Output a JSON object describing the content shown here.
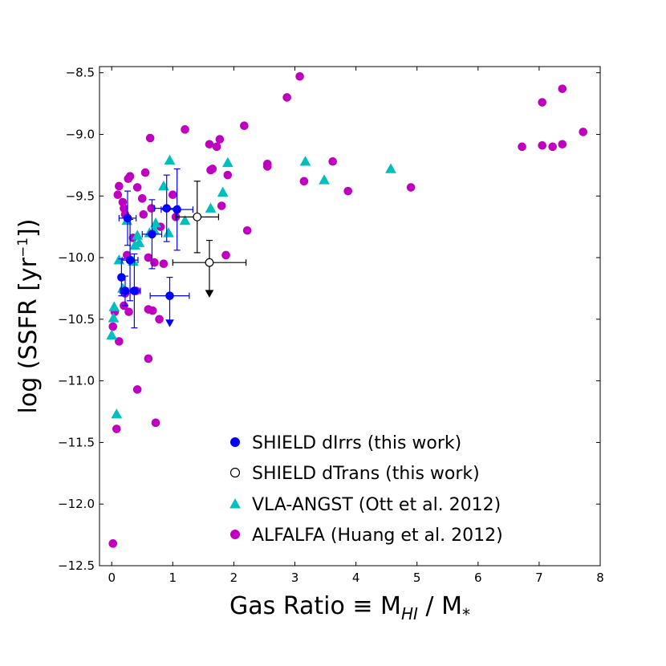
{
  "chart_data": {
    "type": "scatter",
    "xlabel": {
      "prefix": "Gas Ratio ≡ M",
      "sub": "HI",
      "mid": " / M",
      "sub2": "*"
    },
    "ylabel": {
      "prefix": "log (SSFR [yr",
      "sup": "−1",
      "suffix": "])"
    },
    "xlim": [
      -0.2,
      8
    ],
    "ylim": [
      -12.5,
      -8.45
    ],
    "xticks": [
      0,
      1,
      2,
      3,
      4,
      5,
      6,
      7,
      8
    ],
    "xtick_labels": [
      "0",
      "1",
      "2",
      "3",
      "4",
      "5",
      "6",
      "7",
      "8"
    ],
    "yticks": [
      -8.5,
      -9.0,
      -9.5,
      -10.0,
      -10.5,
      -11.0,
      -11.5,
      -12.0,
      -12.5
    ],
    "ytick_labels": [
      "−8.5",
      "−9.0",
      "−9.5",
      "−10.0",
      "−10.5",
      "−11.0",
      "−11.5",
      "−12.0",
      "−12.5"
    ],
    "grid": false,
    "legend_placement": "bottom-right",
    "series": [
      {
        "name": "SHIELD dIrrs (this work)",
        "marker": "circle-filled",
        "color": "#0000ff",
        "points": [
          {
            "x": 0.16,
            "y": -10.16,
            "xerr": 0.04,
            "yerr": 0.15
          },
          {
            "x": 0.22,
            "y": -10.27,
            "xerr": 0.08,
            "yerr": 0.12
          },
          {
            "x": 0.3,
            "y": -10.02,
            "xerr": 0.13,
            "yerr": 0.33
          },
          {
            "x": 0.26,
            "y": -9.68,
            "xerr": 0.14,
            "yerr": 0.22
          },
          {
            "x": 0.37,
            "y": -10.27,
            "xerr": 0.1,
            "yerr": 0.3
          },
          {
            "x": 0.66,
            "y": -9.81,
            "xerr": 0.16,
            "yerr": 0.28
          },
          {
            "x": 0.9,
            "y": -9.6,
            "xerr": 0.2,
            "yerr": 0.27
          },
          {
            "x": 1.07,
            "y": -9.61,
            "xerr": 0.26,
            "yerr": 0.33
          },
          {
            "x": 0.95,
            "y": -10.31,
            "xerr": 0.32,
            "yerr": 0.15,
            "upper_limit": true
          }
        ]
      },
      {
        "name": "SHIELD dTrans (this work)",
        "marker": "circle-open",
        "color": "#000000",
        "points": [
          {
            "x": 1.4,
            "y": -9.67,
            "xerr": 0.35,
            "yerr": 0.29
          },
          {
            "x": 1.6,
            "y": -10.04,
            "xerr": 0.6,
            "yerr": 0.18,
            "upper_limit": true
          }
        ]
      },
      {
        "name": "VLA-ANGST (Ott et al. 2012)",
        "marker": "triangle",
        "color": "#00bfbf",
        "points": [
          {
            "x": 0.0,
            "y": -10.63
          },
          {
            "x": 0.03,
            "y": -10.49
          },
          {
            "x": 0.04,
            "y": -10.4
          },
          {
            "x": 0.08,
            "y": -11.27
          },
          {
            "x": 0.12,
            "y": -10.02
          },
          {
            "x": 0.18,
            "y": -10.25
          },
          {
            "x": 0.25,
            "y": -9.7
          },
          {
            "x": 0.35,
            "y": -10.03
          },
          {
            "x": 0.38,
            "y": -9.9
          },
          {
            "x": 0.42,
            "y": -9.82
          },
          {
            "x": 0.45,
            "y": -9.88
          },
          {
            "x": 0.62,
            "y": -9.8
          },
          {
            "x": 0.7,
            "y": -9.78
          },
          {
            "x": 0.72,
            "y": -9.72
          },
          {
            "x": 0.85,
            "y": -9.42
          },
          {
            "x": 0.95,
            "y": -9.21
          },
          {
            "x": 0.93,
            "y": -9.8
          },
          {
            "x": 1.2,
            "y": -9.7
          },
          {
            "x": 1.62,
            "y": -9.6
          },
          {
            "x": 1.82,
            "y": -9.47
          },
          {
            "x": 1.9,
            "y": -9.23
          },
          {
            "x": 3.17,
            "y": -9.22
          },
          {
            "x": 3.48,
            "y": -9.37
          },
          {
            "x": 4.57,
            "y": -9.28
          }
        ]
      },
      {
        "name": "ALFALFA (Huang et al. 2012)",
        "marker": "circle-filled",
        "color": "#bf00bf",
        "points": [
          {
            "x": 0.02,
            "y": -12.32
          },
          {
            "x": 0.08,
            "y": -11.39
          },
          {
            "x": 0.12,
            "y": -10.68
          },
          {
            "x": 0.02,
            "y": -10.56
          },
          {
            "x": 0.05,
            "y": -10.44
          },
          {
            "x": 0.2,
            "y": -10.39
          },
          {
            "x": 0.28,
            "y": -10.44
          },
          {
            "x": 0.22,
            "y": -10.29
          },
          {
            "x": 0.3,
            "y": -10.02
          },
          {
            "x": 0.25,
            "y": -9.98
          },
          {
            "x": 0.4,
            "y": -10.27
          },
          {
            "x": 0.42,
            "y": -11.07
          },
          {
            "x": 0.1,
            "y": -9.49
          },
          {
            "x": 0.18,
            "y": -9.55
          },
          {
            "x": 0.2,
            "y": -9.6
          },
          {
            "x": 0.22,
            "y": -9.65
          },
          {
            "x": 0.12,
            "y": -9.42
          },
          {
            "x": 0.27,
            "y": -9.36
          },
          {
            "x": 0.3,
            "y": -9.34
          },
          {
            "x": 0.35,
            "y": -9.84
          },
          {
            "x": 0.42,
            "y": -9.43
          },
          {
            "x": 0.5,
            "y": -9.52
          },
          {
            "x": 0.52,
            "y": -9.65
          },
          {
            "x": 0.55,
            "y": -9.31
          },
          {
            "x": 0.6,
            "y": -10.0
          },
          {
            "x": 0.63,
            "y": -9.03
          },
          {
            "x": 0.65,
            "y": -9.6
          },
          {
            "x": 0.7,
            "y": -10.04
          },
          {
            "x": 0.72,
            "y": -11.34
          },
          {
            "x": 0.6,
            "y": -10.82
          },
          {
            "x": 0.6,
            "y": -10.42
          },
          {
            "x": 0.67,
            "y": -10.43
          },
          {
            "x": 0.8,
            "y": -9.75
          },
          {
            "x": 0.85,
            "y": -10.05
          },
          {
            "x": 0.78,
            "y": -10.5
          },
          {
            "x": 1.0,
            "y": -9.49
          },
          {
            "x": 1.05,
            "y": -9.67
          },
          {
            "x": 1.2,
            "y": -8.96
          },
          {
            "x": 1.6,
            "y": -9.08
          },
          {
            "x": 1.62,
            "y": -9.29
          },
          {
            "x": 1.65,
            "y": -9.28
          },
          {
            "x": 1.72,
            "y": -9.1
          },
          {
            "x": 1.77,
            "y": -9.04
          },
          {
            "x": 1.8,
            "y": -9.58
          },
          {
            "x": 1.87,
            "y": -9.98
          },
          {
            "x": 1.9,
            "y": -9.33
          },
          {
            "x": 2.17,
            "y": -8.93
          },
          {
            "x": 2.22,
            "y": -9.78
          },
          {
            "x": 2.55,
            "y": -9.24
          },
          {
            "x": 2.55,
            "y": -9.26
          },
          {
            "x": 2.87,
            "y": -8.7
          },
          {
            "x": 3.08,
            "y": -8.53
          },
          {
            "x": 3.15,
            "y": -9.38
          },
          {
            "x": 3.62,
            "y": -9.22
          },
          {
            "x": 3.87,
            "y": -9.46
          },
          {
            "x": 4.9,
            "y": -9.43
          },
          {
            "x": 6.72,
            "y": -9.1
          },
          {
            "x": 7.05,
            "y": -9.09
          },
          {
            "x": 7.05,
            "y": -8.74
          },
          {
            "x": 7.22,
            "y": -9.1
          },
          {
            "x": 7.38,
            "y": -9.08
          },
          {
            "x": 7.38,
            "y": -8.63
          },
          {
            "x": 7.72,
            "y": -8.98
          }
        ]
      }
    ]
  }
}
